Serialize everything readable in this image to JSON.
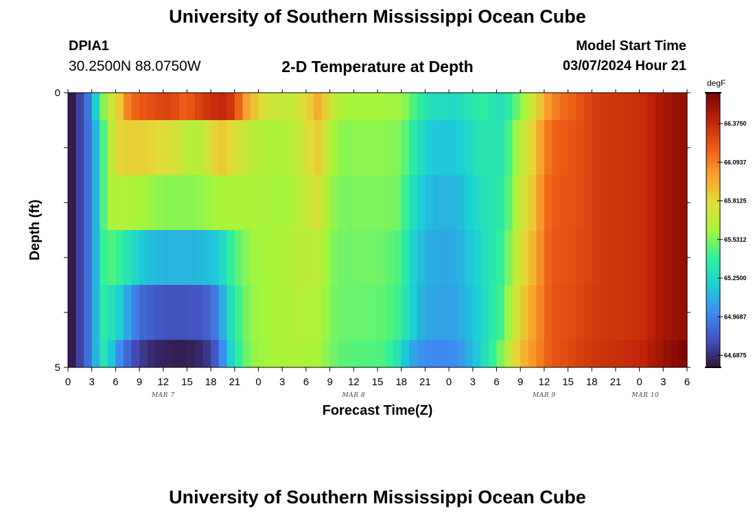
{
  "page": {
    "title": "University of Southern Mississippi Ocean Cube",
    "repeated_title": "University of Southern Mississippi Ocean Cube"
  },
  "station": {
    "id": "DPIA1",
    "coords": "30.2500N  88.0750W"
  },
  "model": {
    "start_label": "Model Start Time",
    "start_value": "03/07/2024 Hour 21"
  },
  "chart_data": {
    "type": "heatmap",
    "title": "2-D Temperature at Depth",
    "xlabel": "Forecast Time(Z)",
    "ylabel": "Depth (ft)",
    "x_tick_labels": [
      "0",
      "3",
      "6",
      "9",
      "12",
      "15",
      "18",
      "21",
      "0",
      "3",
      "6",
      "9",
      "12",
      "15",
      "18",
      "21",
      "0",
      "3",
      "6",
      "9",
      "12",
      "15",
      "18",
      "21",
      "0",
      "3",
      "6"
    ],
    "date_labels": [
      "MAR 7",
      "MAR 8",
      "MAR 9",
      "MAR 10"
    ],
    "y_tick_labels": [
      "0",
      "5"
    ],
    "ylim": [
      0,
      5
    ],
    "x_range_hours": [
      0,
      78
    ],
    "depth_layers": [
      0,
      1,
      2,
      3,
      4,
      5
    ],
    "colorbar": {
      "unit": "degF",
      "tick_labels": [
        "66.3750",
        "66.0937",
        "65.8125",
        "65.5312",
        "65.2500",
        "64.9687",
        "64.6875"
      ],
      "range": [
        64.6,
        66.6
      ]
    },
    "values": [
      [
        64.63,
        64.76,
        64.92,
        65.22,
        65.55,
        65.72,
        65.86,
        66.08,
        66.17,
        66.21,
        66.24,
        66.27,
        66.28,
        66.25,
        66.19,
        66.22,
        66.28,
        66.33,
        66.36,
        66.38,
        66.33,
        66.17,
        66.0,
        65.88,
        65.79,
        65.74,
        65.71,
        65.69,
        65.72,
        65.78,
        65.85,
        65.95,
        65.85,
        65.7,
        65.63,
        65.61,
        65.61,
        65.61,
        65.61,
        65.6,
        65.59,
        65.59,
        65.55,
        65.45,
        65.36,
        65.3,
        65.27,
        65.27,
        65.25,
        65.28,
        65.32,
        65.35,
        65.37,
        65.33,
        65.29,
        65.36,
        65.48,
        65.6,
        65.72,
        65.88,
        66.01,
        66.1,
        66.15,
        66.18,
        66.23,
        66.27,
        66.3,
        66.32,
        66.33,
        66.33,
        66.34,
        66.35,
        66.37,
        66.41,
        66.45,
        66.48,
        66.5,
        66.52
      ],
      [
        64.63,
        64.76,
        64.9,
        65.12,
        65.45,
        65.67,
        65.82,
        65.84,
        65.84,
        65.84,
        65.82,
        65.8,
        65.78,
        65.75,
        65.71,
        65.65,
        65.66,
        65.74,
        65.83,
        65.86,
        65.81,
        65.74,
        65.7,
        65.66,
        65.64,
        65.63,
        65.63,
        65.64,
        65.67,
        65.72,
        65.8,
        65.85,
        65.73,
        65.61,
        65.56,
        65.55,
        65.56,
        65.56,
        65.56,
        65.56,
        65.55,
        65.54,
        65.47,
        65.36,
        65.27,
        65.2,
        65.18,
        65.18,
        65.18,
        65.21,
        65.25,
        65.3,
        65.33,
        65.32,
        65.32,
        65.43,
        65.58,
        65.72,
        65.82,
        65.98,
        66.12,
        66.18,
        66.2,
        66.22,
        66.24,
        66.27,
        66.3,
        66.32,
        66.33,
        66.33,
        66.34,
        66.35,
        66.37,
        66.41,
        66.45,
        66.48,
        66.5,
        66.52
      ],
      [
        64.63,
        64.76,
        64.9,
        65.12,
        65.45,
        65.62,
        65.65,
        65.64,
        65.62,
        65.6,
        65.58,
        65.56,
        65.55,
        65.55,
        65.55,
        65.55,
        65.56,
        65.58,
        65.6,
        65.62,
        65.62,
        65.62,
        65.62,
        65.62,
        65.61,
        65.61,
        65.61,
        65.61,
        65.63,
        65.67,
        65.73,
        65.75,
        65.66,
        65.56,
        65.53,
        65.52,
        65.53,
        65.53,
        65.53,
        65.53,
        65.52,
        65.51,
        65.41,
        65.28,
        65.2,
        65.15,
        65.12,
        65.12,
        65.12,
        65.15,
        65.2,
        65.25,
        65.3,
        65.32,
        65.35,
        65.47,
        65.62,
        65.76,
        65.86,
        66.02,
        66.15,
        66.2,
        66.22,
        66.23,
        66.25,
        66.27,
        66.3,
        66.32,
        66.33,
        66.33,
        66.34,
        66.35,
        66.37,
        66.41,
        66.45,
        66.48,
        66.5,
        66.52
      ],
      [
        64.63,
        64.76,
        64.9,
        65.12,
        65.4,
        65.45,
        65.4,
        65.32,
        65.24,
        65.18,
        65.15,
        65.13,
        65.12,
        65.12,
        65.12,
        65.12,
        65.13,
        65.15,
        65.18,
        65.26,
        65.38,
        65.48,
        65.55,
        65.59,
        65.6,
        65.61,
        65.62,
        65.63,
        65.65,
        65.66,
        65.67,
        65.67,
        65.6,
        65.53,
        65.51,
        65.5,
        65.51,
        65.51,
        65.51,
        65.5,
        65.48,
        65.45,
        65.35,
        65.22,
        65.14,
        65.1,
        65.09,
        65.08,
        65.09,
        65.12,
        65.17,
        65.22,
        65.28,
        65.33,
        65.38,
        65.52,
        65.68,
        65.82,
        65.92,
        66.05,
        66.17,
        66.22,
        66.23,
        66.24,
        66.26,
        66.28,
        66.3,
        66.32,
        66.33,
        66.33,
        66.34,
        66.35,
        66.37,
        66.41,
        66.45,
        66.48,
        66.5,
        66.52
      ],
      [
        64.63,
        64.76,
        64.9,
        65.12,
        65.35,
        65.3,
        65.2,
        65.08,
        64.96,
        64.88,
        64.84,
        64.82,
        64.8,
        64.8,
        64.8,
        64.81,
        64.82,
        64.86,
        64.94,
        65.1,
        65.28,
        65.42,
        65.52,
        65.58,
        65.6,
        65.61,
        65.62,
        65.63,
        65.64,
        65.65,
        65.65,
        65.64,
        65.58,
        65.52,
        65.5,
        65.49,
        65.49,
        65.49,
        65.49,
        65.48,
        65.46,
        65.42,
        65.32,
        65.2,
        65.12,
        65.08,
        65.07,
        65.06,
        65.07,
        65.1,
        65.15,
        65.2,
        65.27,
        65.35,
        65.42,
        65.58,
        65.74,
        65.88,
        65.98,
        66.08,
        66.18,
        66.23,
        66.24,
        66.25,
        66.27,
        66.29,
        66.31,
        66.32,
        66.33,
        66.33,
        66.34,
        66.35,
        66.37,
        66.41,
        66.45,
        66.48,
        66.5,
        66.52
      ],
      [
        64.63,
        64.76,
        64.9,
        65.12,
        65.32,
        65.18,
        65.0,
        64.88,
        64.78,
        64.72,
        64.68,
        64.66,
        64.65,
        64.64,
        64.64,
        64.65,
        64.67,
        64.72,
        64.82,
        65.0,
        65.22,
        65.38,
        65.5,
        65.57,
        65.59,
        65.6,
        65.61,
        65.62,
        65.62,
        65.62,
        65.62,
        65.61,
        65.56,
        65.51,
        65.48,
        65.47,
        65.46,
        65.46,
        65.46,
        65.45,
        65.4,
        65.32,
        65.18,
        65.07,
        65.02,
        65.0,
        64.99,
        64.99,
        65.0,
        65.04,
        65.1,
        65.18,
        65.28,
        65.4,
        65.52,
        65.68,
        65.82,
        65.94,
        66.02,
        66.1,
        66.18,
        66.23,
        66.25,
        66.27,
        66.29,
        66.31,
        66.33,
        66.34,
        66.35,
        66.36,
        66.37,
        66.38,
        66.4,
        66.44,
        66.48,
        66.52,
        66.55,
        66.58
      ]
    ]
  }
}
